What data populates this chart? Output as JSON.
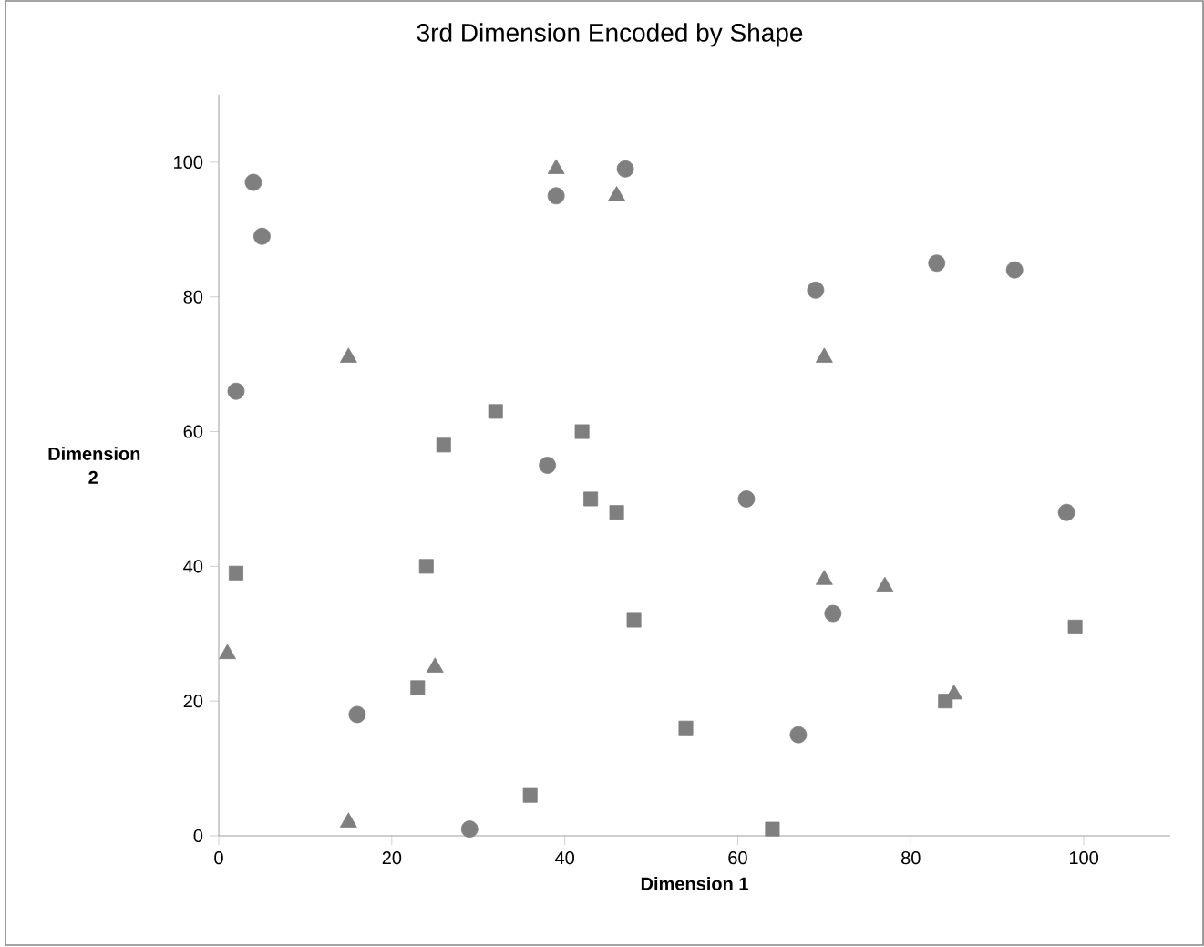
{
  "chart_data": {
    "type": "scatter",
    "title": "3rd Dimension Encoded by Shape",
    "xlabel": "Dimension 1",
    "ylabel": "Dimension 2",
    "xlim": [
      0,
      110
    ],
    "ylim": [
      0,
      110
    ],
    "xticks": [
      0,
      20,
      40,
      60,
      80,
      100
    ],
    "yticks": [
      0,
      20,
      40,
      60,
      80,
      100
    ],
    "series": [
      {
        "marker": "circle",
        "color": "#7f7f7f",
        "x": [
          4,
          5,
          2,
          16,
          29,
          39,
          47,
          38,
          61,
          69,
          83,
          92,
          98,
          71,
          67
        ],
        "values": [
          97,
          89,
          66,
          18,
          1,
          95,
          99,
          55,
          50,
          81,
          85,
          84,
          48,
          33,
          15
        ]
      },
      {
        "marker": "triangle",
        "color": "#7f7f7f",
        "x": [
          39,
          46,
          15,
          70,
          70,
          77,
          1,
          25,
          85,
          15
        ],
        "values": [
          99,
          95,
          71,
          71,
          38,
          37,
          27,
          25,
          21,
          2
        ]
      },
      {
        "marker": "square",
        "color": "#7f7f7f",
        "x": [
          32,
          42,
          26,
          43,
          46,
          2,
          24,
          48,
          99,
          23,
          84,
          54,
          36,
          64
        ],
        "values": [
          63,
          60,
          58,
          50,
          48,
          39,
          40,
          32,
          31,
          22,
          20,
          16,
          6,
          1
        ]
      }
    ]
  }
}
